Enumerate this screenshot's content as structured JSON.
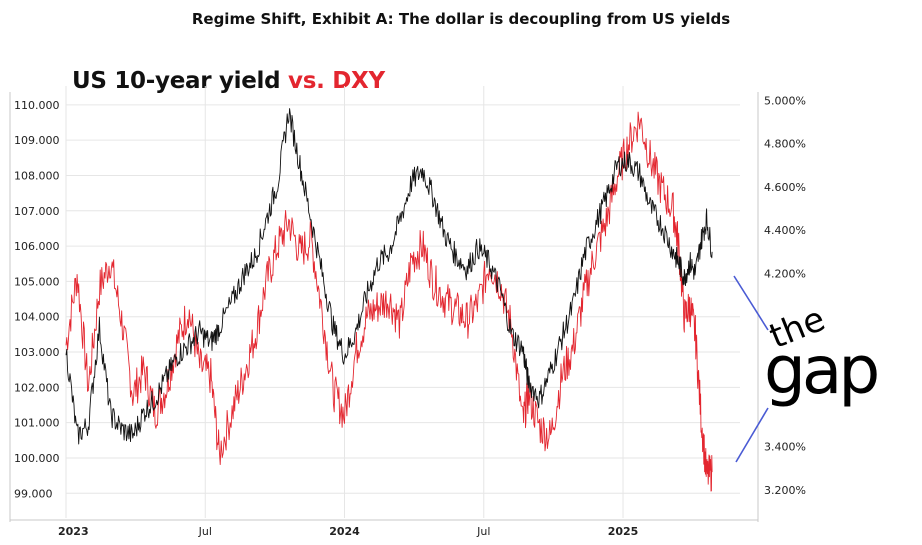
{
  "page": {
    "title": "Regime Shift, Exhibit A: The dollar is decoupling from US yields",
    "headline_part1": "US 10-year yield ",
    "headline_part2": "vs. DXY"
  },
  "logo": {
    "line1": "the",
    "line2": "gap",
    "color": "#000000",
    "connector_color": "#4a5bd4"
  },
  "colors": {
    "yield": "#111111",
    "dxy": "#e3262f",
    "grid": "#e6e6e6",
    "axis": "#c8c8c8"
  },
  "chart_data": {
    "type": "line",
    "title": "US 10-year yield vs. DXY",
    "x_labels": [
      "2023",
      "Jul",
      "2024",
      "Jul",
      "2025"
    ],
    "x_labels_bold": [
      true,
      false,
      true,
      false,
      true
    ],
    "x_domain": [
      2023.0,
      2025.42
    ],
    "left_axis": {
      "series": "DXY",
      "ticks": [
        "110.000",
        "109.000",
        "108.000",
        "107.000",
        "106.000",
        "105.000",
        "104.000",
        "103.000",
        "102.000",
        "101.000",
        "100.000",
        "99.000"
      ],
      "range": [
        98.3,
        110.25
      ]
    },
    "right_axis": {
      "series": "US 10-year yield (%)",
      "ticks": [
        "5.000%",
        "4.800%",
        "4.600%",
        "4.400%",
        "4.200%",
        "3.400%",
        "3.200%"
      ],
      "tick_values": [
        5.0,
        4.8,
        4.6,
        4.4,
        4.2,
        3.4,
        3.2
      ],
      "range": [
        3.07,
        5.02
      ]
    },
    "series": [
      {
        "name": "DXY",
        "axis": "left",
        "color": "#e3262f",
        "x": [
          2023.0,
          2023.04,
          2023.08,
          2023.12,
          2023.16,
          2023.2,
          2023.24,
          2023.28,
          2023.32,
          2023.36,
          2023.4,
          2023.44,
          2023.48,
          2023.52,
          2023.55,
          2023.6,
          2023.64,
          2023.68,
          2023.72,
          2023.76,
          2023.8,
          2023.84,
          2023.88,
          2023.92,
          2023.96,
          2024.0,
          2024.04,
          2024.08,
          2024.12,
          2024.16,
          2024.2,
          2024.24,
          2024.28,
          2024.32,
          2024.36,
          2024.4,
          2024.44,
          2024.48,
          2024.52,
          2024.56,
          2024.6,
          2024.64,
          2024.66,
          2024.7,
          2024.74,
          2024.78,
          2024.82,
          2024.86,
          2024.9,
          2024.94,
          2024.98,
          2025.02,
          2025.06,
          2025.1,
          2025.14,
          2025.18,
          2025.2,
          2025.22,
          2025.24,
          2025.26,
          2025.28,
          2025.3,
          2025.32
        ],
        "values": [
          103.2,
          105.2,
          102.0,
          104.8,
          105.6,
          103.9,
          101.8,
          102.5,
          101.3,
          102.0,
          103.3,
          104.2,
          102.6,
          102.3,
          100.1,
          101.4,
          102.4,
          103.5,
          105.0,
          106.0,
          106.7,
          105.8,
          106.2,
          104.1,
          101.9,
          101.2,
          103.0,
          104.0,
          104.3,
          104.5,
          103.8,
          105.6,
          106.0,
          105.0,
          104.5,
          104.2,
          103.9,
          104.4,
          105.5,
          104.9,
          103.7,
          101.0,
          101.8,
          100.9,
          100.6,
          102.3,
          103.1,
          104.6,
          105.8,
          106.7,
          108.0,
          108.9,
          109.6,
          108.4,
          107.6,
          107.0,
          106.0,
          104.0,
          104.3,
          103.5,
          101.2,
          99.5,
          99.6
        ]
      },
      {
        "name": "US 10-year yield",
        "axis": "right",
        "color": "#111111",
        "x": [
          2023.0,
          2023.04,
          2023.08,
          2023.12,
          2023.16,
          2023.2,
          2023.24,
          2023.28,
          2023.32,
          2023.36,
          2023.4,
          2023.44,
          2023.48,
          2023.52,
          2023.55,
          2023.6,
          2023.64,
          2023.68,
          2023.72,
          2023.76,
          2023.8,
          2023.84,
          2023.88,
          2023.92,
          2023.96,
          2024.0,
          2024.04,
          2024.08,
          2024.12,
          2024.16,
          2024.2,
          2024.24,
          2024.28,
          2024.32,
          2024.36,
          2024.4,
          2024.44,
          2024.48,
          2024.52,
          2024.56,
          2024.6,
          2024.64,
          2024.66,
          2024.7,
          2024.74,
          2024.78,
          2024.82,
          2024.86,
          2024.9,
          2024.94,
          2024.98,
          2025.02,
          2025.06,
          2025.1,
          2025.14,
          2025.18,
          2025.2,
          2025.22,
          2025.24,
          2025.26,
          2025.28,
          2025.3,
          2025.32
        ],
        "values": [
          3.85,
          3.45,
          3.5,
          3.95,
          3.55,
          3.48,
          3.45,
          3.56,
          3.62,
          3.72,
          3.82,
          3.87,
          3.93,
          3.88,
          3.95,
          4.08,
          4.2,
          4.28,
          4.45,
          4.62,
          4.95,
          4.7,
          4.45,
          4.2,
          3.95,
          3.82,
          3.93,
          4.1,
          4.25,
          4.3,
          4.45,
          4.62,
          4.68,
          4.55,
          4.38,
          4.28,
          4.22,
          4.32,
          4.25,
          4.12,
          3.92,
          3.85,
          3.7,
          3.62,
          3.75,
          3.9,
          4.05,
          4.28,
          4.42,
          4.55,
          4.7,
          4.72,
          4.66,
          4.5,
          4.42,
          4.3,
          4.25,
          4.18,
          4.25,
          4.2,
          4.35,
          4.45,
          4.3
        ]
      }
    ]
  }
}
